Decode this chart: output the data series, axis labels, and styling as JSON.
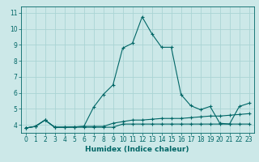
{
  "xlabel": "Humidex (Indice chaleur)",
  "bg_color": "#cce8e8",
  "grid_color": "#aad4d4",
  "line_color": "#006666",
  "x_ticks": [
    0,
    1,
    2,
    3,
    4,
    5,
    6,
    7,
    8,
    9,
    10,
    11,
    12,
    13,
    14,
    15,
    16,
    17,
    18,
    19,
    20,
    21,
    22,
    23
  ],
  "ylim": [
    3.5,
    11.4
  ],
  "xlim": [
    -0.5,
    23.5
  ],
  "line1_x": [
    0,
    1,
    2,
    3,
    4,
    5,
    6,
    7,
    8,
    9,
    10,
    11,
    12,
    13,
    14,
    15,
    16,
    17,
    18,
    19,
    20,
    21,
    22,
    23
  ],
  "line1_y": [
    3.8,
    3.9,
    4.3,
    3.85,
    3.85,
    3.85,
    3.85,
    3.85,
    3.85,
    3.85,
    4.05,
    4.05,
    4.05,
    4.05,
    4.05,
    4.05,
    4.05,
    4.05,
    4.05,
    4.05,
    4.05,
    4.05,
    4.05,
    4.05
  ],
  "line2_x": [
    0,
    1,
    2,
    3,
    4,
    5,
    6,
    7,
    8,
    9,
    10,
    11,
    12,
    13,
    14,
    15,
    16,
    17,
    18,
    19,
    20,
    21,
    22,
    23
  ],
  "line2_y": [
    3.8,
    3.9,
    4.3,
    3.85,
    3.85,
    3.87,
    3.9,
    5.1,
    5.9,
    6.5,
    8.8,
    9.1,
    10.75,
    9.7,
    8.85,
    8.85,
    5.9,
    5.2,
    4.95,
    5.15,
    4.1,
    4.05,
    5.15,
    5.35
  ],
  "line3_x": [
    0,
    1,
    2,
    3,
    4,
    5,
    6,
    7,
    8,
    9,
    10,
    11,
    12,
    13,
    14,
    15,
    16,
    17,
    18,
    19,
    20,
    21,
    22,
    23
  ],
  "line3_y": [
    3.8,
    3.9,
    4.3,
    3.85,
    3.85,
    3.87,
    3.9,
    3.9,
    3.9,
    4.1,
    4.2,
    4.3,
    4.3,
    4.35,
    4.4,
    4.4,
    4.4,
    4.45,
    4.5,
    4.55,
    4.55,
    4.6,
    4.65,
    4.7
  ],
  "yticks": [
    4,
    5,
    6,
    7,
    8,
    9,
    10,
    11
  ],
  "axis_fontsize": 6.5,
  "tick_fontsize": 5.5
}
